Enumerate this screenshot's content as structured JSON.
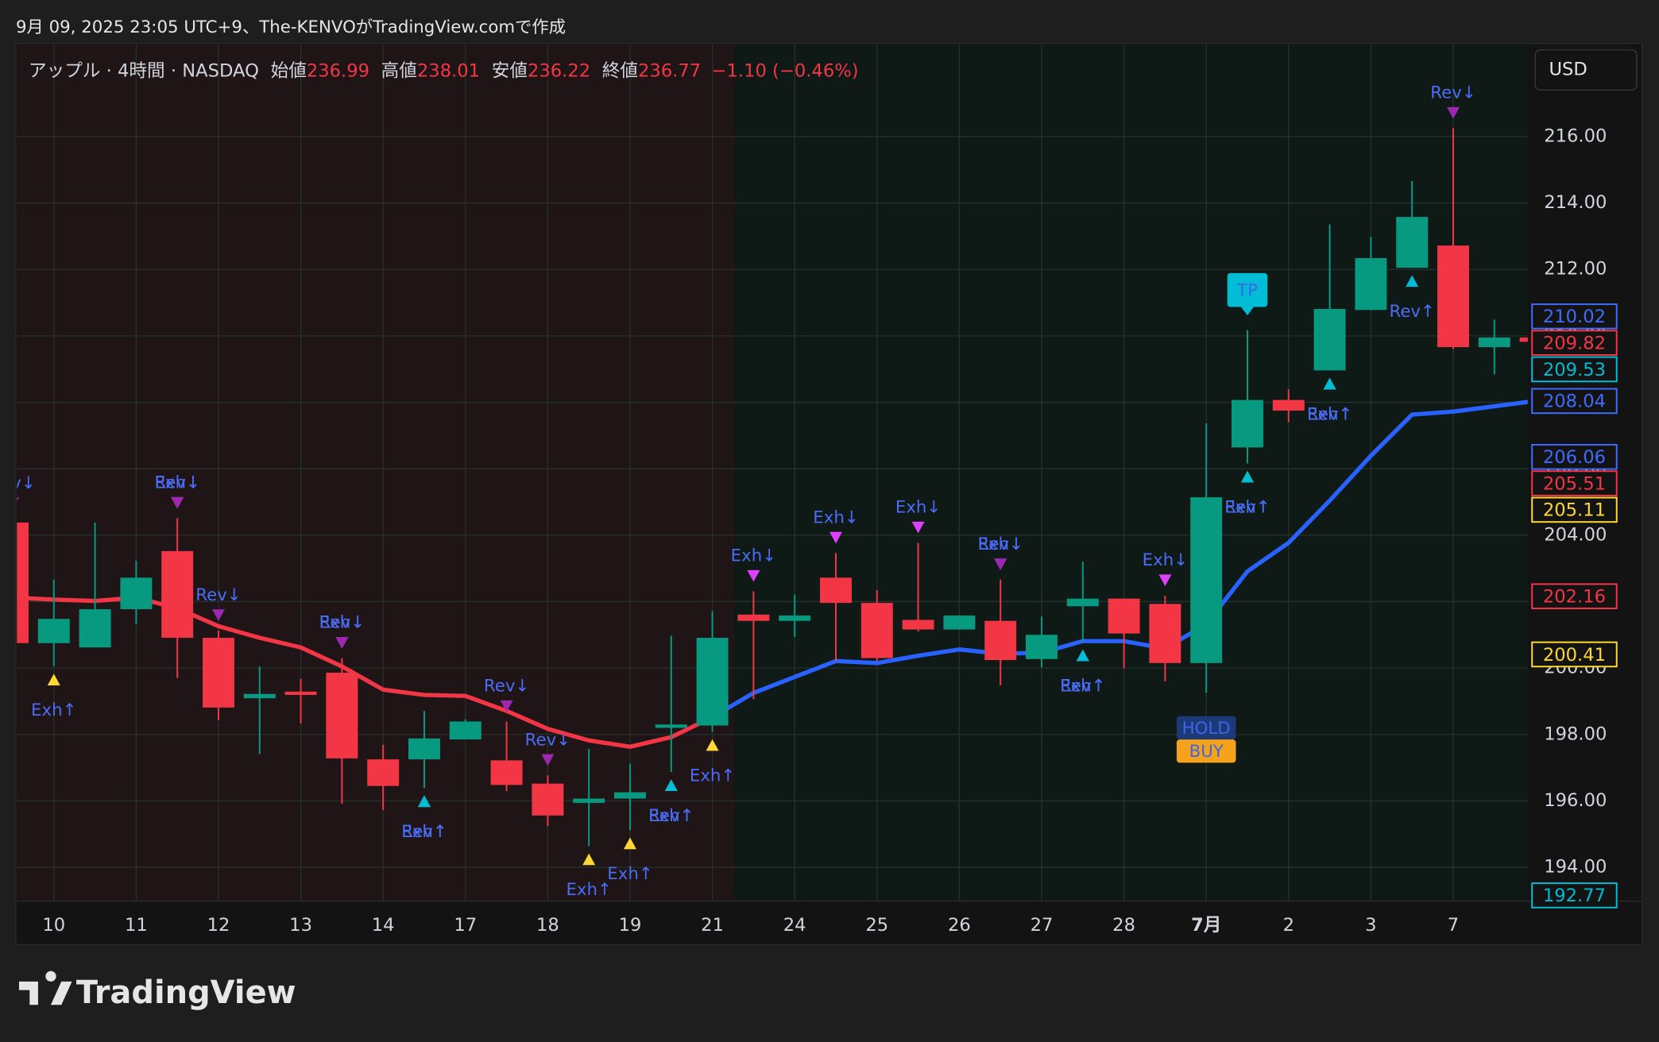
{
  "header": {
    "credit": "9月 09, 2025 23:05 UTC+9、The-KENVOがTradingView.comで作成",
    "symbol": "アップル · 4時間 · NASDAQ",
    "fields": [
      {
        "label": "始値",
        "value": 236.99
      },
      {
        "label": "高値",
        "value": 238.01
      },
      {
        "label": "安値",
        "value": 236.22
      },
      {
        "label": "終値",
        "value": 236.77
      }
    ],
    "change": "−1.10 (−0.46%)"
  },
  "currency": "USD",
  "footer": "TradingView",
  "chart_data": {
    "type": "candlestick",
    "categories": [
      null,
      "10",
      null,
      "11",
      null,
      "12",
      null,
      "13",
      null,
      "14",
      null,
      "17",
      null,
      "18",
      null,
      "19",
      null,
      "21",
      null,
      "24",
      null,
      "25",
      null,
      "26",
      null,
      "27",
      null,
      "28",
      null,
      "7月",
      null,
      "2",
      null,
      "3",
      null,
      "7",
      null,
      null
    ],
    "open": [
      204.38,
      200.75,
      200.62,
      201.77,
      203.52,
      200.91,
      199.09,
      199.29,
      199.86,
      197.25,
      197.25,
      197.85,
      197.22,
      196.52,
      195.94,
      196.07,
      198.2,
      198.27,
      201.61,
      201.42,
      202.72,
      201.96,
      201.45,
      201.16,
      201.42,
      200.27,
      201.86,
      202.09,
      201.93,
      200.15,
      206.64,
      208.07,
      208.96,
      210.78,
      212.05,
      212.72,
      209.66,
      209.95
    ],
    "high": [
      204.5,
      202.66,
      204.38,
      203.23,
      204.51,
      201.13,
      200.05,
      199.67,
      200.3,
      197.69,
      198.71,
      198.46,
      198.39,
      196.77,
      197.57,
      197.12,
      200.97,
      201.71,
      202.31,
      202.21,
      203.46,
      202.34,
      203.77,
      201.58,
      202.66,
      201.55,
      203.2,
      202.09,
      202.18,
      207.37,
      210.17,
      208.39,
      213.36,
      212.98,
      214.66,
      216.25,
      210.49,
      210.05
    ],
    "low": [
      200.6,
      200.05,
      200.62,
      201.32,
      199.7,
      198.43,
      197.41,
      198.33,
      195.91,
      195.72,
      196.39,
      197.85,
      196.29,
      195.24,
      194.64,
      195.12,
      196.87,
      198.08,
      199.06,
      200.94,
      200.21,
      200.21,
      201.1,
      201.16,
      199.48,
      200.02,
      200.78,
      199.99,
      199.6,
      199.25,
      206.16,
      207.4,
      208.96,
      210.78,
      212.05,
      209.6,
      208.84,
      209.7
    ],
    "close": [
      200.75,
      201.48,
      201.77,
      202.72,
      200.91,
      198.81,
      199.22,
      199.19,
      197.28,
      196.45,
      197.88,
      198.39,
      196.48,
      195.56,
      196.07,
      196.26,
      198.3,
      200.91,
      201.42,
      201.58,
      201.96,
      200.3,
      201.16,
      201.58,
      200.24,
      201.0,
      202.09,
      201.04,
      200.15,
      205.14,
      208.07,
      207.75,
      210.81,
      212.34,
      213.58,
      209.66,
      209.95,
      209.82
    ],
    "up_color": "#089981",
    "down_color": "#f23645",
    "lines": [
      {
        "color": "#f23645",
        "values": [
          202.12,
          202.06,
          202.02,
          202.12,
          201.8,
          201.26,
          200.91,
          200.62,
          200.05,
          199.35,
          199.19,
          199.16,
          198.71,
          198.17,
          197.82,
          197.63,
          197.92,
          198.52,
          null,
          null,
          null,
          null,
          null,
          null,
          null,
          null,
          null,
          null,
          null,
          null,
          null,
          null,
          null,
          null,
          null,
          null,
          null,
          null
        ]
      },
      {
        "color": "#2962ff",
        "values": [
          null,
          null,
          null,
          null,
          null,
          null,
          null,
          null,
          null,
          null,
          null,
          null,
          null,
          null,
          null,
          null,
          null,
          198.52,
          199.25,
          199.73,
          200.21,
          200.15,
          200.37,
          200.56,
          200.43,
          200.46,
          200.81,
          200.81,
          200.59,
          201.32,
          202.91,
          203.77,
          205.04,
          206.39,
          207.63,
          207.72,
          207.88,
          208.04
        ]
      }
    ],
    "ylim": [
      192.98,
      218.77
    ],
    "yticks": [
      {
        "value": 194,
        "label": "194.00"
      },
      {
        "value": 196,
        "label": "196.00"
      },
      {
        "value": 198,
        "label": "198.00"
      },
      {
        "value": 200,
        "label": "200.00"
      },
      {
        "value": 202,
        "label": "202.00"
      },
      {
        "value": 204,
        "label": "204.00"
      },
      {
        "value": 206,
        "label": "206.00"
      },
      {
        "value": 208,
        "label": "208.00"
      },
      {
        "value": 210,
        "label": "210.00"
      },
      {
        "value": 212,
        "label": "212.00"
      },
      {
        "value": 214,
        "label": "214.00"
      },
      {
        "value": 216,
        "label": "216.00"
      }
    ],
    "grid": true,
    "price_labels": [
      {
        "value": 210.02,
        "color": "#3d6bff"
      },
      {
        "value": 209.82,
        "color": "#f23645"
      },
      {
        "value": 209.53,
        "color": "#00bcd4"
      },
      {
        "value": 208.04,
        "color": "#3d6bff"
      },
      {
        "value": 206.06,
        "color": "#3d6bff"
      },
      {
        "value": 205.51,
        "color": "#f23645"
      },
      {
        "value": 205.11,
        "color": "#fdd835"
      },
      {
        "value": 202.16,
        "color": "#f23645"
      },
      {
        "value": 200.41,
        "color": "#fdd835"
      },
      {
        "value": 192.77,
        "color": "#00bcd4"
      }
    ],
    "signals": [
      {
        "x": 0,
        "label": "Rev↓",
        "color": "#9c27b0"
      },
      {
        "x": 1,
        "label": "Exh↑",
        "color": "#fdd835"
      },
      {
        "x": 4,
        "label": "Exh↓",
        "color": "#e040fb"
      },
      {
        "x": 4,
        "label": "Rev↓",
        "color": "#9c27b0"
      },
      {
        "x": 5,
        "label": "Rev↓",
        "color": "#9c27b0"
      },
      {
        "x": 8,
        "label": "Exh↓",
        "color": "#e040fb"
      },
      {
        "x": 8,
        "label": "Rev↓",
        "color": "#9c27b0"
      },
      {
        "x": 10,
        "label": "Exh↑",
        "color": "#fdd835"
      },
      {
        "x": 10,
        "label": "Rev↑",
        "color": "#00bcd4"
      },
      {
        "x": 12,
        "label": "Rev↓",
        "color": "#9c27b0"
      },
      {
        "x": 13,
        "label": "Rev↓",
        "color": "#9c27b0"
      },
      {
        "x": 14,
        "label": "Exh↑",
        "color": "#fdd835"
      },
      {
        "x": 15,
        "label": "Exh↑",
        "color": "#fdd835"
      },
      {
        "x": 16,
        "label": "Exh↑",
        "color": "#fdd835"
      },
      {
        "x": 16,
        "label": "Rev↑",
        "color": "#00bcd4"
      },
      {
        "x": 17,
        "label": "Exh↑",
        "color": "#fdd835"
      },
      {
        "x": 18,
        "label": "Exh↓",
        "color": "#e040fb"
      },
      {
        "x": 20,
        "label": "Exh↓",
        "color": "#e040fb"
      },
      {
        "x": 22,
        "label": "Exh↓",
        "color": "#e040fb"
      },
      {
        "x": 24,
        "label": "Exh↓",
        "color": "#e040fb"
      },
      {
        "x": 24,
        "label": "Rev↓",
        "color": "#9c27b0"
      },
      {
        "x": 26,
        "label": "Exh↑",
        "color": "#fdd835"
      },
      {
        "x": 26,
        "label": "Rev↑",
        "color": "#00bcd4"
      },
      {
        "x": 28,
        "label": "Exh↓",
        "color": "#e040fb"
      },
      {
        "x": 30,
        "label": "Exh↑",
        "color": "#fdd835"
      },
      {
        "x": 30,
        "label": "Rev↑",
        "color": "#00bcd4"
      },
      {
        "x": 32,
        "label": "Exh↑",
        "color": "#fdd835"
      },
      {
        "x": 32,
        "label": "Rev↑",
        "color": "#00bcd4"
      },
      {
        "x": 34,
        "label": "Rev↑",
        "color": "#00bcd4"
      },
      {
        "x": 35,
        "label": "Rev↓",
        "color": "#9c27b0"
      }
    ],
    "badges": [
      {
        "x": 29,
        "label": "HOLD",
        "color": "#1c3a78"
      },
      {
        "x": 29,
        "label": "BUY",
        "color": "#f7a21b"
      },
      {
        "x": 30,
        "label": "TP",
        "color": "#00bcd4"
      }
    ]
  }
}
